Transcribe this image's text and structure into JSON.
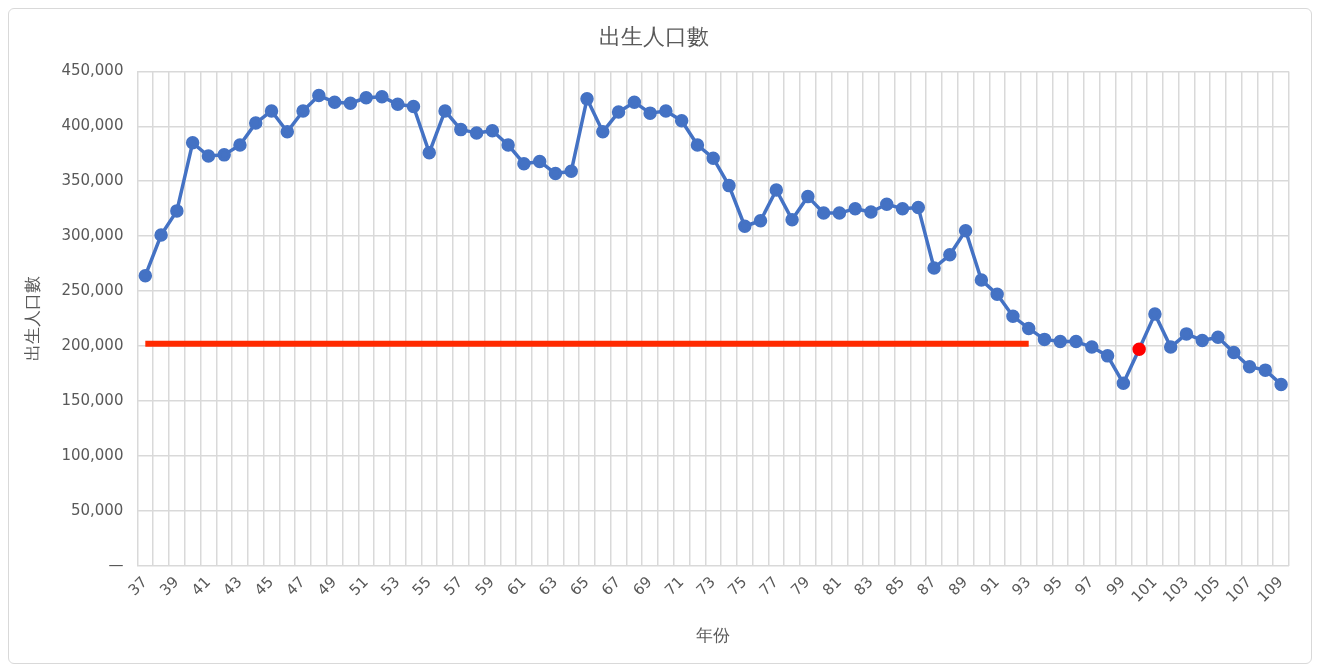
{
  "chart_data": {
    "type": "line",
    "title": "出生人口數",
    "xlabel": "年份",
    "ylabel": "出生人口數",
    "categories": [
      "37",
      null,
      "39",
      null,
      "41",
      null,
      "43",
      null,
      "45",
      null,
      "47",
      null,
      "49",
      null,
      "51",
      null,
      "53",
      null,
      "55",
      null,
      "57",
      null,
      "59",
      null,
      "61",
      null,
      "63",
      null,
      "65",
      null,
      "67",
      null,
      "69",
      null,
      "71",
      null,
      "73",
      null,
      "75",
      null,
      "77",
      null,
      "79",
      null,
      "81",
      null,
      "83",
      null,
      "85",
      null,
      "87",
      null,
      "89",
      null,
      "91",
      null,
      "93",
      null,
      "95",
      null,
      "97",
      null,
      "99",
      null,
      "101",
      null,
      "103",
      null,
      "105",
      null,
      "107",
      null,
      "109"
    ],
    "series": [
      {
        "color": "#4472c4",
        "marker": "circle",
        "line_style": "solid",
        "colors": [
          "#4472c4",
          "#4472c4",
          "#4472c4",
          "#4472c4",
          "#4472c4",
          "#4472c4",
          "#4472c4",
          "#4472c4",
          "#4472c4",
          "#4472c4",
          "#4472c4",
          "#4472c4",
          "#4472c4",
          "#4472c4",
          "#4472c4",
          "#4472c4",
          "#4472c4",
          "#4472c4",
          "#4472c4",
          "#4472c4",
          "#4472c4",
          "#4472c4",
          "#4472c4",
          "#4472c4",
          "#4472c4",
          "#4472c4",
          "#4472c4",
          "#4472c4",
          "#4472c4",
          "#4472c4",
          "#4472c4",
          "#4472c4",
          "#4472c4",
          "#4472c4",
          "#4472c4",
          "#4472c4",
          "#4472c4",
          "#4472c4",
          "#4472c4",
          "#4472c4",
          "#4472c4",
          "#4472c4",
          "#4472c4",
          "#4472c4",
          "#4472c4",
          "#4472c4",
          "#4472c4",
          "#4472c4",
          "#4472c4",
          "#4472c4",
          "#4472c4",
          "#4472c4",
          "#4472c4",
          "#4472c4",
          "#4472c4",
          "#4472c4",
          "#4472c4",
          "#4472c4",
          "#4472c4",
          "#4472c4",
          "#4472c4",
          "#4472c4",
          "#4472c4",
          "#ff0000",
          "#4472c4",
          "#4472c4",
          "#4472c4",
          "#4472c4",
          "#4472c4",
          "#4472c4",
          "#4472c4",
          "#4472c4",
          "#4472c4"
        ],
        "values": [
          264000,
          301000,
          323000,
          385000,
          373000,
          374000,
          383000,
          403000,
          414000,
          395000,
          414000,
          428000,
          422000,
          421000,
          426000,
          427000,
          420000,
          418000,
          376000,
          414000,
          397000,
          394000,
          396000,
          383000,
          366000,
          368000,
          357000,
          359000,
          425000,
          395000,
          413000,
          422000,
          412000,
          414000,
          405000,
          383000,
          371000,
          346000,
          309000,
          314000,
          342000,
          315000,
          336000,
          321000,
          321000,
          325000,
          322000,
          329000,
          325000,
          326000,
          271000,
          283000,
          305000,
          260000,
          247000,
          227000,
          216000,
          206000,
          204000,
          204000,
          199000,
          191000,
          166000,
          197000,
          229000,
          199000,
          211000,
          205000,
          208000,
          194000,
          181000,
          178000,
          165000
        ]
      },
      {
        "color": "#ff2a00",
        "marker": "none",
        "line_style": "solid",
        "values": [
          202000,
          202000,
          202000,
          202000,
          202000,
          202000,
          202000,
          202000,
          202000,
          202000,
          202000,
          202000,
          202000,
          202000,
          202000,
          202000,
          202000,
          202000,
          202000,
          202000,
          202000,
          202000,
          202000,
          202000,
          202000,
          202000,
          202000,
          202000,
          202000,
          202000,
          202000,
          202000,
          202000,
          202000,
          202000,
          202000,
          202000,
          202000,
          202000,
          202000,
          202000,
          202000,
          202000,
          202000,
          202000,
          202000,
          202000,
          202000,
          202000,
          202000,
          202000,
          202000,
          202000,
          202000,
          202000,
          202000,
          202000,
          null,
          null,
          null,
          null,
          null,
          null,
          null,
          null,
          null,
          null,
          null,
          null,
          null,
          null,
          null,
          null
        ]
      }
    ],
    "ylim": [
      0,
      450000
    ],
    "yticks": [
      {
        "value": 0,
        "label": "—"
      },
      {
        "value": 50000,
        "label": "50,000"
      },
      {
        "value": 100000,
        "label": "100,000"
      },
      {
        "value": 150000,
        "label": "150,000"
      },
      {
        "value": 200000,
        "label": "200,000"
      },
      {
        "value": 250000,
        "label": "250,000"
      },
      {
        "value": 300000,
        "label": "300,000"
      },
      {
        "value": 350000,
        "label": "350,000"
      },
      {
        "value": 400000,
        "label": "400,000"
      },
      {
        "value": 450000,
        "label": "450,000"
      }
    ],
    "grid": true,
    "legend": false
  }
}
